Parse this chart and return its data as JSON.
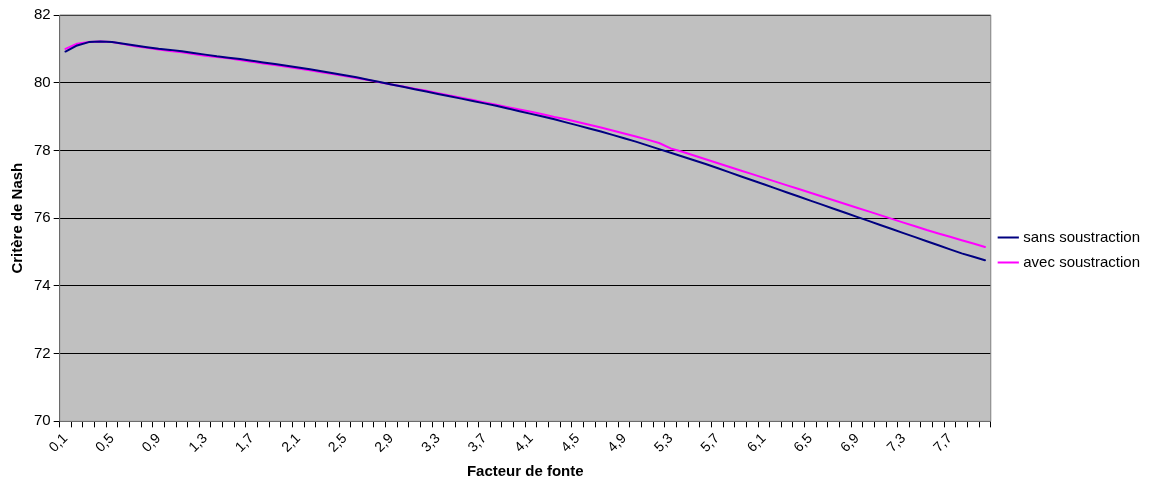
{
  "chart_data": {
    "type": "line",
    "xlabel": "Facteur de fonte",
    "ylabel": "Critère de Nash",
    "categories": [
      "0,1",
      null,
      null,
      null,
      "0,5",
      null,
      null,
      null,
      "0,9",
      null,
      null,
      null,
      "1,3",
      null,
      null,
      null,
      "1,7",
      null,
      null,
      null,
      "2,1",
      null,
      null,
      null,
      "2,5",
      null,
      null,
      null,
      "2,9",
      null,
      null,
      null,
      "3,3",
      null,
      null,
      null,
      "3,7",
      null,
      null,
      null,
      "4,1",
      null,
      null,
      null,
      "4,5",
      null,
      null,
      null,
      "4,9",
      null,
      null,
      null,
      "5,3",
      null,
      null,
      null,
      "5,7",
      null,
      null,
      null,
      "6,1",
      null,
      null,
      null,
      "6,5",
      null,
      null,
      null,
      "6,9",
      null,
      null,
      null,
      "7,3",
      null,
      null,
      null,
      "7,7",
      null,
      null,
      null
    ],
    "series": [
      {
        "name": "sans soustraction",
        "color": "#000080",
        "values": [
          80.92,
          81.1,
          81.2,
          81.22,
          81.2,
          81.15,
          81.1,
          81.05,
          81.0,
          80.97,
          80.93,
          80.88,
          80.83,
          80.78,
          80.74,
          80.7,
          80.65,
          80.6,
          80.55,
          80.5,
          80.45,
          80.4,
          80.34,
          80.28,
          80.22,
          80.16,
          80.09,
          80.02,
          79.95,
          79.88,
          79.81,
          79.74,
          79.67,
          79.6,
          79.53,
          79.46,
          79.39,
          79.32,
          79.24,
          79.16,
          79.08,
          79.0,
          78.92,
          78.83,
          78.74,
          78.65,
          78.56,
          78.46,
          78.36,
          78.26,
          78.15,
          78.04,
          77.93,
          77.82,
          77.71,
          77.6,
          77.48,
          77.36,
          77.24,
          77.12,
          77.0,
          76.88,
          76.76,
          76.64,
          76.52,
          76.4,
          76.28,
          76.16,
          76.04,
          75.92,
          75.8,
          75.68,
          75.56,
          75.44,
          75.32,
          75.2,
          75.08,
          74.96,
          74.86,
          74.76
        ]
      },
      {
        "name": "avec soustraction",
        "color": "#ff00ff",
        "values": [
          81.0,
          81.15,
          81.2,
          81.22,
          81.2,
          81.14,
          81.08,
          81.03,
          80.98,
          80.94,
          80.9,
          80.85,
          80.8,
          80.76,
          80.72,
          80.67,
          80.62,
          80.57,
          80.52,
          80.47,
          80.42,
          80.37,
          80.31,
          80.26,
          80.2,
          80.14,
          80.08,
          80.01,
          79.95,
          79.89,
          79.82,
          79.76,
          79.69,
          79.62,
          79.56,
          79.49,
          79.42,
          79.35,
          79.28,
          79.21,
          79.14,
          79.07,
          78.99,
          78.92,
          78.84,
          78.76,
          78.68,
          78.59,
          78.5,
          78.41,
          78.32,
          78.22,
          78.06,
          77.96,
          77.85,
          77.74,
          77.63,
          77.52,
          77.41,
          77.3,
          77.19,
          77.08,
          76.97,
          76.86,
          76.75,
          76.64,
          76.53,
          76.42,
          76.31,
          76.2,
          76.09,
          75.98,
          75.87,
          75.76,
          75.65,
          75.55,
          75.45,
          75.35,
          75.25,
          75.15
        ]
      }
    ],
    "ylim": [
      70,
      82
    ],
    "yticks": [
      70,
      72,
      74,
      76,
      78,
      80,
      82
    ],
    "grid": "y",
    "legend": "right",
    "marker": "none",
    "line_style": "solid"
  }
}
